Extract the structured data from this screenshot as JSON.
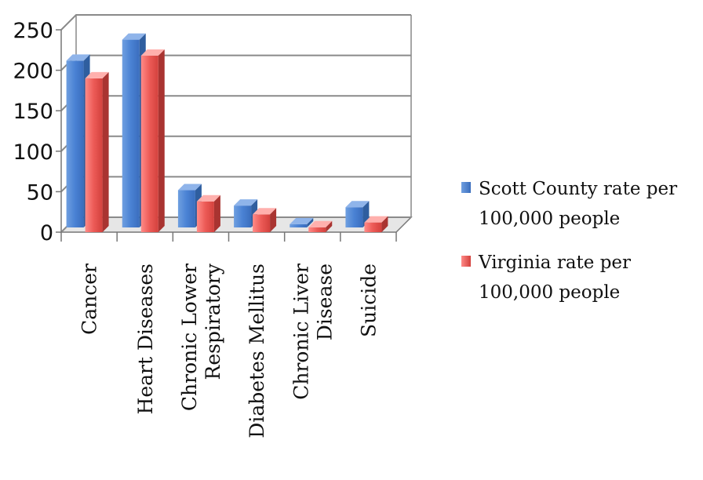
{
  "chart_data": {
    "type": "bar",
    "categories": [
      [
        "Cancer"
      ],
      [
        "Heart Diseases"
      ],
      [
        "Chronic Lower",
        "Respiratory"
      ],
      [
        "Diabetes Mellitus"
      ],
      [
        "Chronic Liver",
        "Disease"
      ],
      [
        "Suicide"
      ]
    ],
    "series": [
      {
        "name": "Scott County rate per 100,000 people",
        "values": [
          206,
          232,
          46,
          27,
          4,
          25
        ],
        "color": "#4f81bd"
      },
      {
        "name": "Virginia rate per 100,000 people",
        "values": [
          190,
          218,
          38,
          22,
          6,
          12
        ],
        "color": "#c0504d"
      }
    ],
    "yticks": [
      "0",
      "50",
      "100",
      "150",
      "200",
      "250"
    ],
    "ylim": [
      0,
      250
    ],
    "grid": true,
    "legend_position": "right"
  }
}
